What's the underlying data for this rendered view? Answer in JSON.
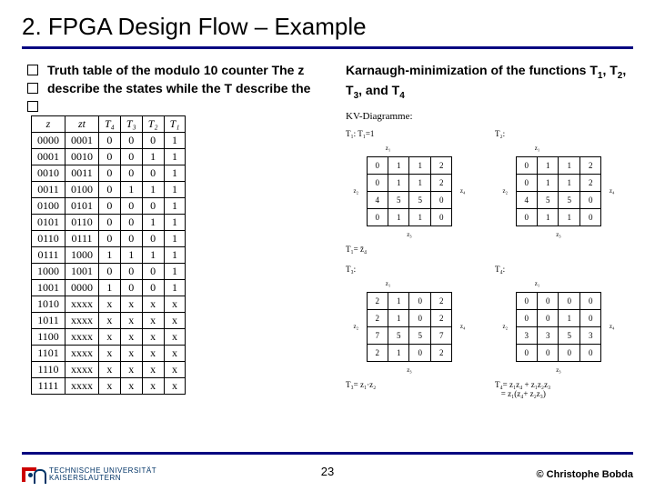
{
  "title": "2. FPGA Design Flow – Example",
  "bullets": {
    "b1": "Truth table of the modulo 10 counter The z",
    "b2": "describe the states while the T  describe the",
    "b3": ""
  },
  "right_text_parts": {
    "prefix": "Karnaugh-minimization of the functions T",
    "s1": "1",
    "mid1": ", T",
    "s2": "2",
    "mid2": ", T",
    "s3": "3",
    "mid3": ", and T",
    "s4": "4"
  },
  "truth_table": {
    "headers": [
      "z",
      "zt",
      "T₄",
      "T₃",
      "T₂",
      "T₁"
    ],
    "rows": [
      [
        "0000",
        "0001",
        "0",
        "0",
        "0",
        "1"
      ],
      [
        "0001",
        "0010",
        "0",
        "0",
        "1",
        "1"
      ],
      [
        "0010",
        "0011",
        "0",
        "0",
        "0",
        "1"
      ],
      [
        "0011",
        "0100",
        "0",
        "1",
        "1",
        "1"
      ],
      [
        "0100",
        "0101",
        "0",
        "0",
        "0",
        "1"
      ],
      [
        "0101",
        "0110",
        "0",
        "0",
        "1",
        "1"
      ],
      [
        "0110",
        "0111",
        "0",
        "0",
        "0",
        "1"
      ],
      [
        "0111",
        "1000",
        "1",
        "1",
        "1",
        "1"
      ],
      [
        "1000",
        "1001",
        "0",
        "0",
        "0",
        "1"
      ],
      [
        "1001",
        "0000",
        "1",
        "0",
        "0",
        "1"
      ],
      [
        "1010",
        "xxxx",
        "x",
        "x",
        "x",
        "x"
      ],
      [
        "1011",
        "xxxx",
        "x",
        "x",
        "x",
        "x"
      ],
      [
        "1100",
        "xxxx",
        "x",
        "x",
        "x",
        "x"
      ],
      [
        "1101",
        "xxxx",
        "x",
        "x",
        "x",
        "x"
      ],
      [
        "1110",
        "xxxx",
        "x",
        "x",
        "x",
        "x"
      ],
      [
        "1111",
        "xxxx",
        "x",
        "x",
        "x",
        "x"
      ]
    ]
  },
  "kmap": {
    "section_title": "KV-Diagramme:",
    "maps": [
      {
        "label": "T₁:  T₁=1",
        "cells": [
          [
            "0",
            "1",
            "1",
            "2"
          ],
          [
            "0",
            "1",
            "1",
            "2"
          ],
          [
            "4",
            "5",
            "5",
            "0"
          ],
          [
            "0",
            "1",
            "1",
            "0"
          ]
        ],
        "result": "T₁= z̄₄"
      },
      {
        "label": "T₂:",
        "cells": [
          [
            "0",
            "1",
            "1",
            "2"
          ],
          [
            "0",
            "1",
            "1",
            "2"
          ],
          [
            "4",
            "5",
            "5",
            "0"
          ],
          [
            "0",
            "1",
            "1",
            "0"
          ]
        ],
        "result": ""
      },
      {
        "label": "T₃:",
        "cells": [
          [
            "2",
            "1",
            "0",
            "2"
          ],
          [
            "2",
            "1",
            "0",
            "2"
          ],
          [
            "7",
            "5",
            "5",
            "7"
          ],
          [
            "2",
            "1",
            "0",
            "2"
          ]
        ],
        "result": "T₃= z₁·z₂"
      },
      {
        "label": "T₄:",
        "cells": [
          [
            "0",
            "0",
            "0",
            "0"
          ],
          [
            "0",
            "0",
            "1",
            "0"
          ],
          [
            "3",
            "3",
            "5",
            "3"
          ],
          [
            "0",
            "0",
            "0",
            "0"
          ]
        ],
        "result": "T₄= z₁z₄ + z₁z₂z₃\n   = z₁(z₄+ z₂z₃)"
      }
    ]
  },
  "footer": {
    "uni1": "TECHNISCHE UNIVERSITÄT",
    "uni2": "KAISERSLAUTERN",
    "page": "23",
    "copyright": "© Christophe Bobda"
  }
}
